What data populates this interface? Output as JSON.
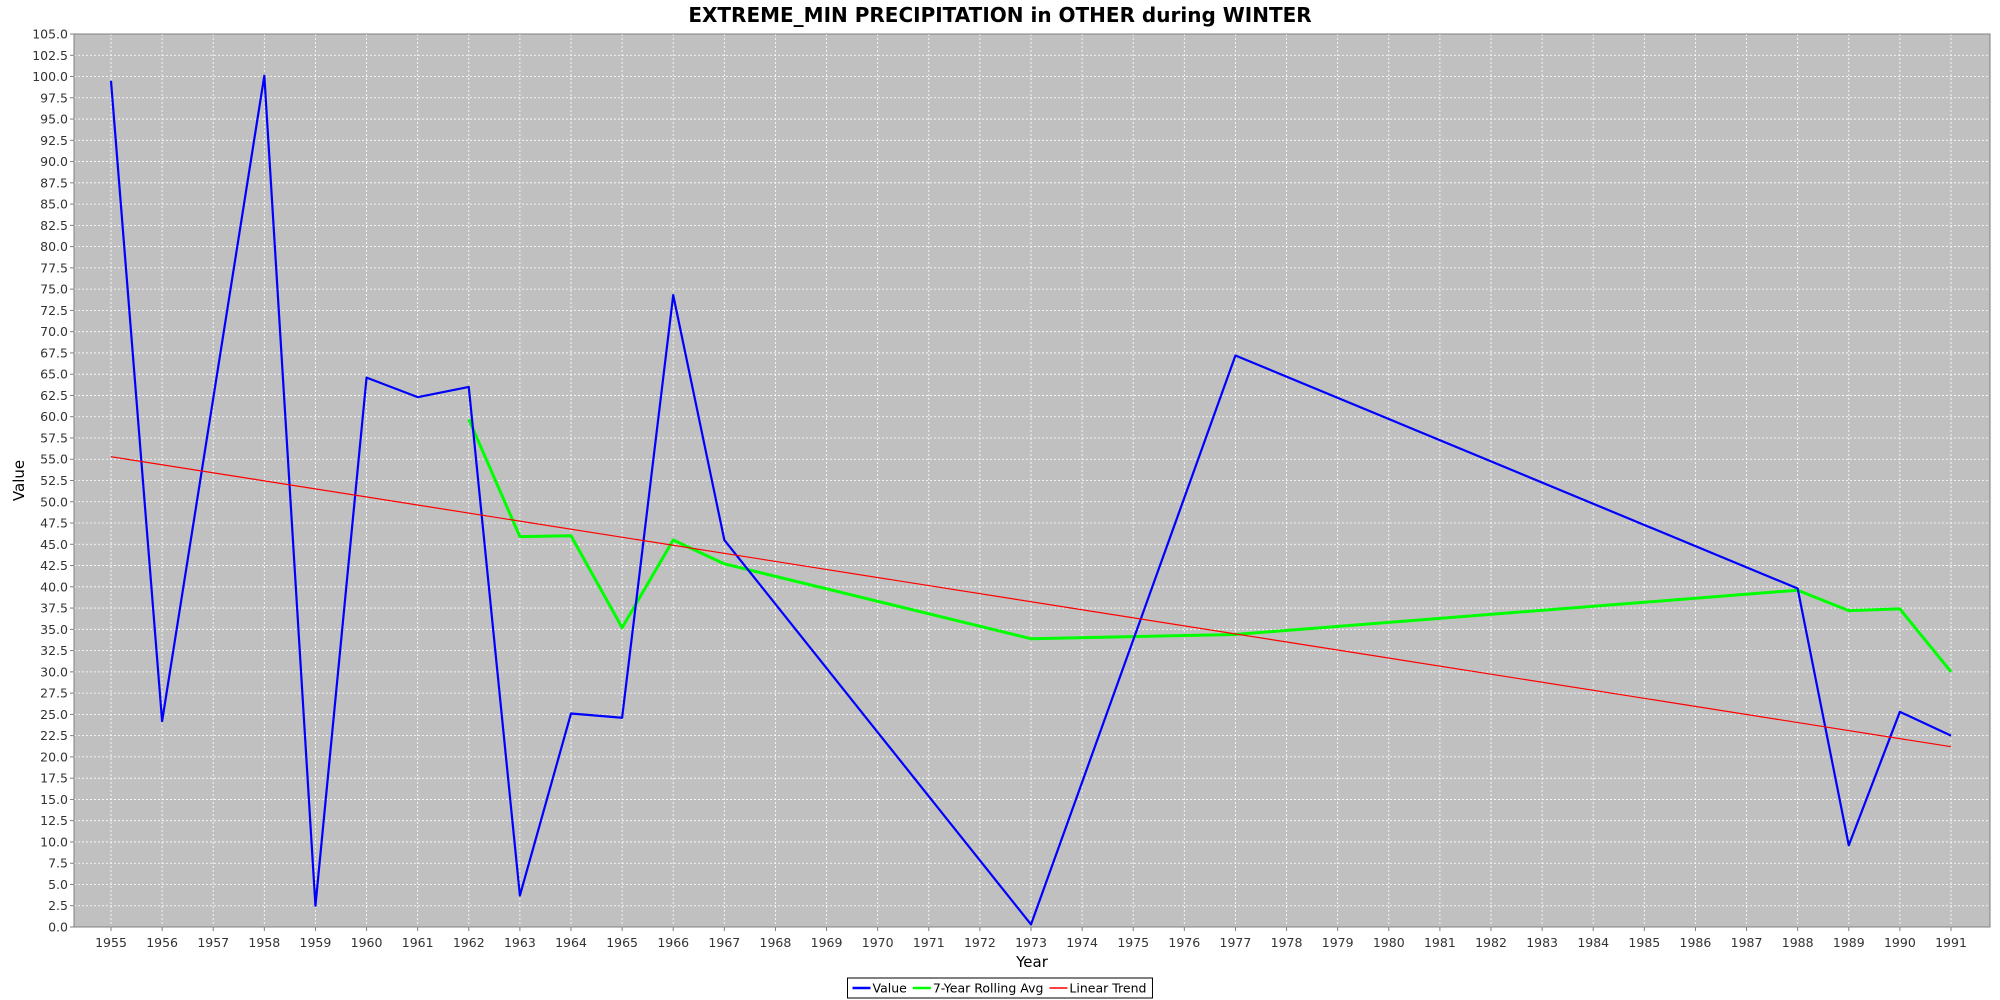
{
  "chart_data": {
    "type": "line",
    "title": "EXTREME_MIN PRECIPITATION in OTHER during WINTER",
    "xlabel": "Year",
    "ylabel": "Value",
    "x_categories": [
      1955,
      1956,
      1957,
      1958,
      1959,
      1960,
      1961,
      1962,
      1963,
      1964,
      1965,
      1966,
      1967,
      1968,
      1969,
      1970,
      1971,
      1972,
      1973,
      1974,
      1975,
      1976,
      1977,
      1978,
      1979,
      1980,
      1981,
      1982,
      1983,
      1984,
      1985,
      1986,
      1987,
      1988,
      1989,
      1990,
      1991
    ],
    "ylim": [
      0,
      105
    ],
    "y_tick_step": 2.5,
    "grid": true,
    "legend_position": "bottom-center",
    "series": [
      {
        "name": "Value",
        "color": "#0000ff",
        "points": [
          {
            "x": 1955,
            "y": 99.5
          },
          {
            "x": 1956,
            "y": 24.2
          },
          {
            "x": 1958,
            "y": 100.1
          },
          {
            "x": 1959,
            "y": 2.5
          },
          {
            "x": 1960,
            "y": 64.6
          },
          {
            "x": 1961,
            "y": 62.3
          },
          {
            "x": 1962,
            "y": 63.5
          },
          {
            "x": 1963,
            "y": 3.7
          },
          {
            "x": 1964,
            "y": 25.1
          },
          {
            "x": 1965,
            "y": 24.6
          },
          {
            "x": 1966,
            "y": 74.3
          },
          {
            "x": 1967,
            "y": 45.5
          },
          {
            "x": 1973,
            "y": 0.3
          },
          {
            "x": 1977,
            "y": 67.2
          },
          {
            "x": 1988,
            "y": 39.8
          },
          {
            "x": 1989,
            "y": 9.6
          },
          {
            "x": 1990,
            "y": 25.3
          },
          {
            "x": 1991,
            "y": 22.5
          }
        ]
      },
      {
        "name": "7-Year Rolling Avg",
        "color": "#00ff00",
        "points": [
          {
            "x": 1962,
            "y": 59.7
          },
          {
            "x": 1963,
            "y": 45.9
          },
          {
            "x": 1964,
            "y": 46.0
          },
          {
            "x": 1965,
            "y": 35.2
          },
          {
            "x": 1966,
            "y": 45.5
          },
          {
            "x": 1967,
            "y": 42.7
          },
          {
            "x": 1973,
            "y": 33.9
          },
          {
            "x": 1977,
            "y": 34.4
          },
          {
            "x": 1988,
            "y": 39.6
          },
          {
            "x": 1989,
            "y": 37.2
          },
          {
            "x": 1990,
            "y": 37.4
          },
          {
            "x": 1991,
            "y": 30.0
          }
        ]
      },
      {
        "name": "Linear Trend",
        "color": "#ff0000",
        "points": [
          {
            "x": 1955,
            "y": 55.3
          },
          {
            "x": 1991,
            "y": 21.2
          }
        ]
      }
    ]
  }
}
